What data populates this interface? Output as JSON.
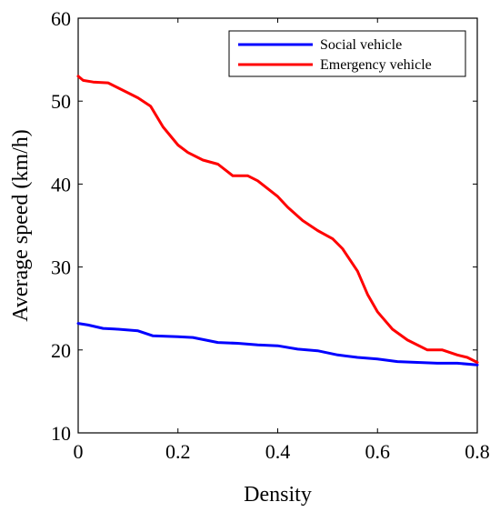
{
  "chart_data": {
    "type": "line",
    "xlabel": "Density",
    "ylabel": "Average speed (km/h)",
    "xlim": [
      0,
      0.8
    ],
    "ylim": [
      10,
      60
    ],
    "xticks": [
      "0",
      "0.2",
      "0.4",
      "0.6",
      "0.8"
    ],
    "yticks": [
      "10",
      "20",
      "30",
      "40",
      "50",
      "60"
    ],
    "grid": false,
    "legend_position": "top-right",
    "series": [
      {
        "name": "Social vehicle",
        "color": "#0000ff",
        "x": [
          0.0,
          0.02,
          0.05,
          0.08,
          0.12,
          0.15,
          0.2,
          0.23,
          0.28,
          0.32,
          0.36,
          0.4,
          0.44,
          0.48,
          0.52,
          0.56,
          0.6,
          0.64,
          0.68,
          0.72,
          0.76,
          0.8
        ],
        "y": [
          23.2,
          23.0,
          22.6,
          22.5,
          22.3,
          21.7,
          21.6,
          21.5,
          20.9,
          20.8,
          20.6,
          20.5,
          20.1,
          19.9,
          19.4,
          19.1,
          18.9,
          18.6,
          18.5,
          18.4,
          18.4,
          18.2
        ]
      },
      {
        "name": "Emergency vehicle",
        "color": "#ff0000",
        "x": [
          0.0,
          0.01,
          0.03,
          0.06,
          0.08,
          0.1,
          0.12,
          0.145,
          0.17,
          0.2,
          0.22,
          0.25,
          0.28,
          0.31,
          0.34,
          0.36,
          0.4,
          0.42,
          0.45,
          0.48,
          0.51,
          0.53,
          0.56,
          0.58,
          0.6,
          0.63,
          0.66,
          0.7,
          0.73,
          0.76,
          0.78,
          0.8
        ],
        "y": [
          53.0,
          52.5,
          52.3,
          52.2,
          51.6,
          51.0,
          50.4,
          49.4,
          46.9,
          44.7,
          43.8,
          42.9,
          42.4,
          41.0,
          41.0,
          40.4,
          38.5,
          37.2,
          35.6,
          34.4,
          33.4,
          32.2,
          29.5,
          26.7,
          24.6,
          22.5,
          21.2,
          20.0,
          20.0,
          19.4,
          19.1,
          18.5
        ]
      }
    ]
  }
}
